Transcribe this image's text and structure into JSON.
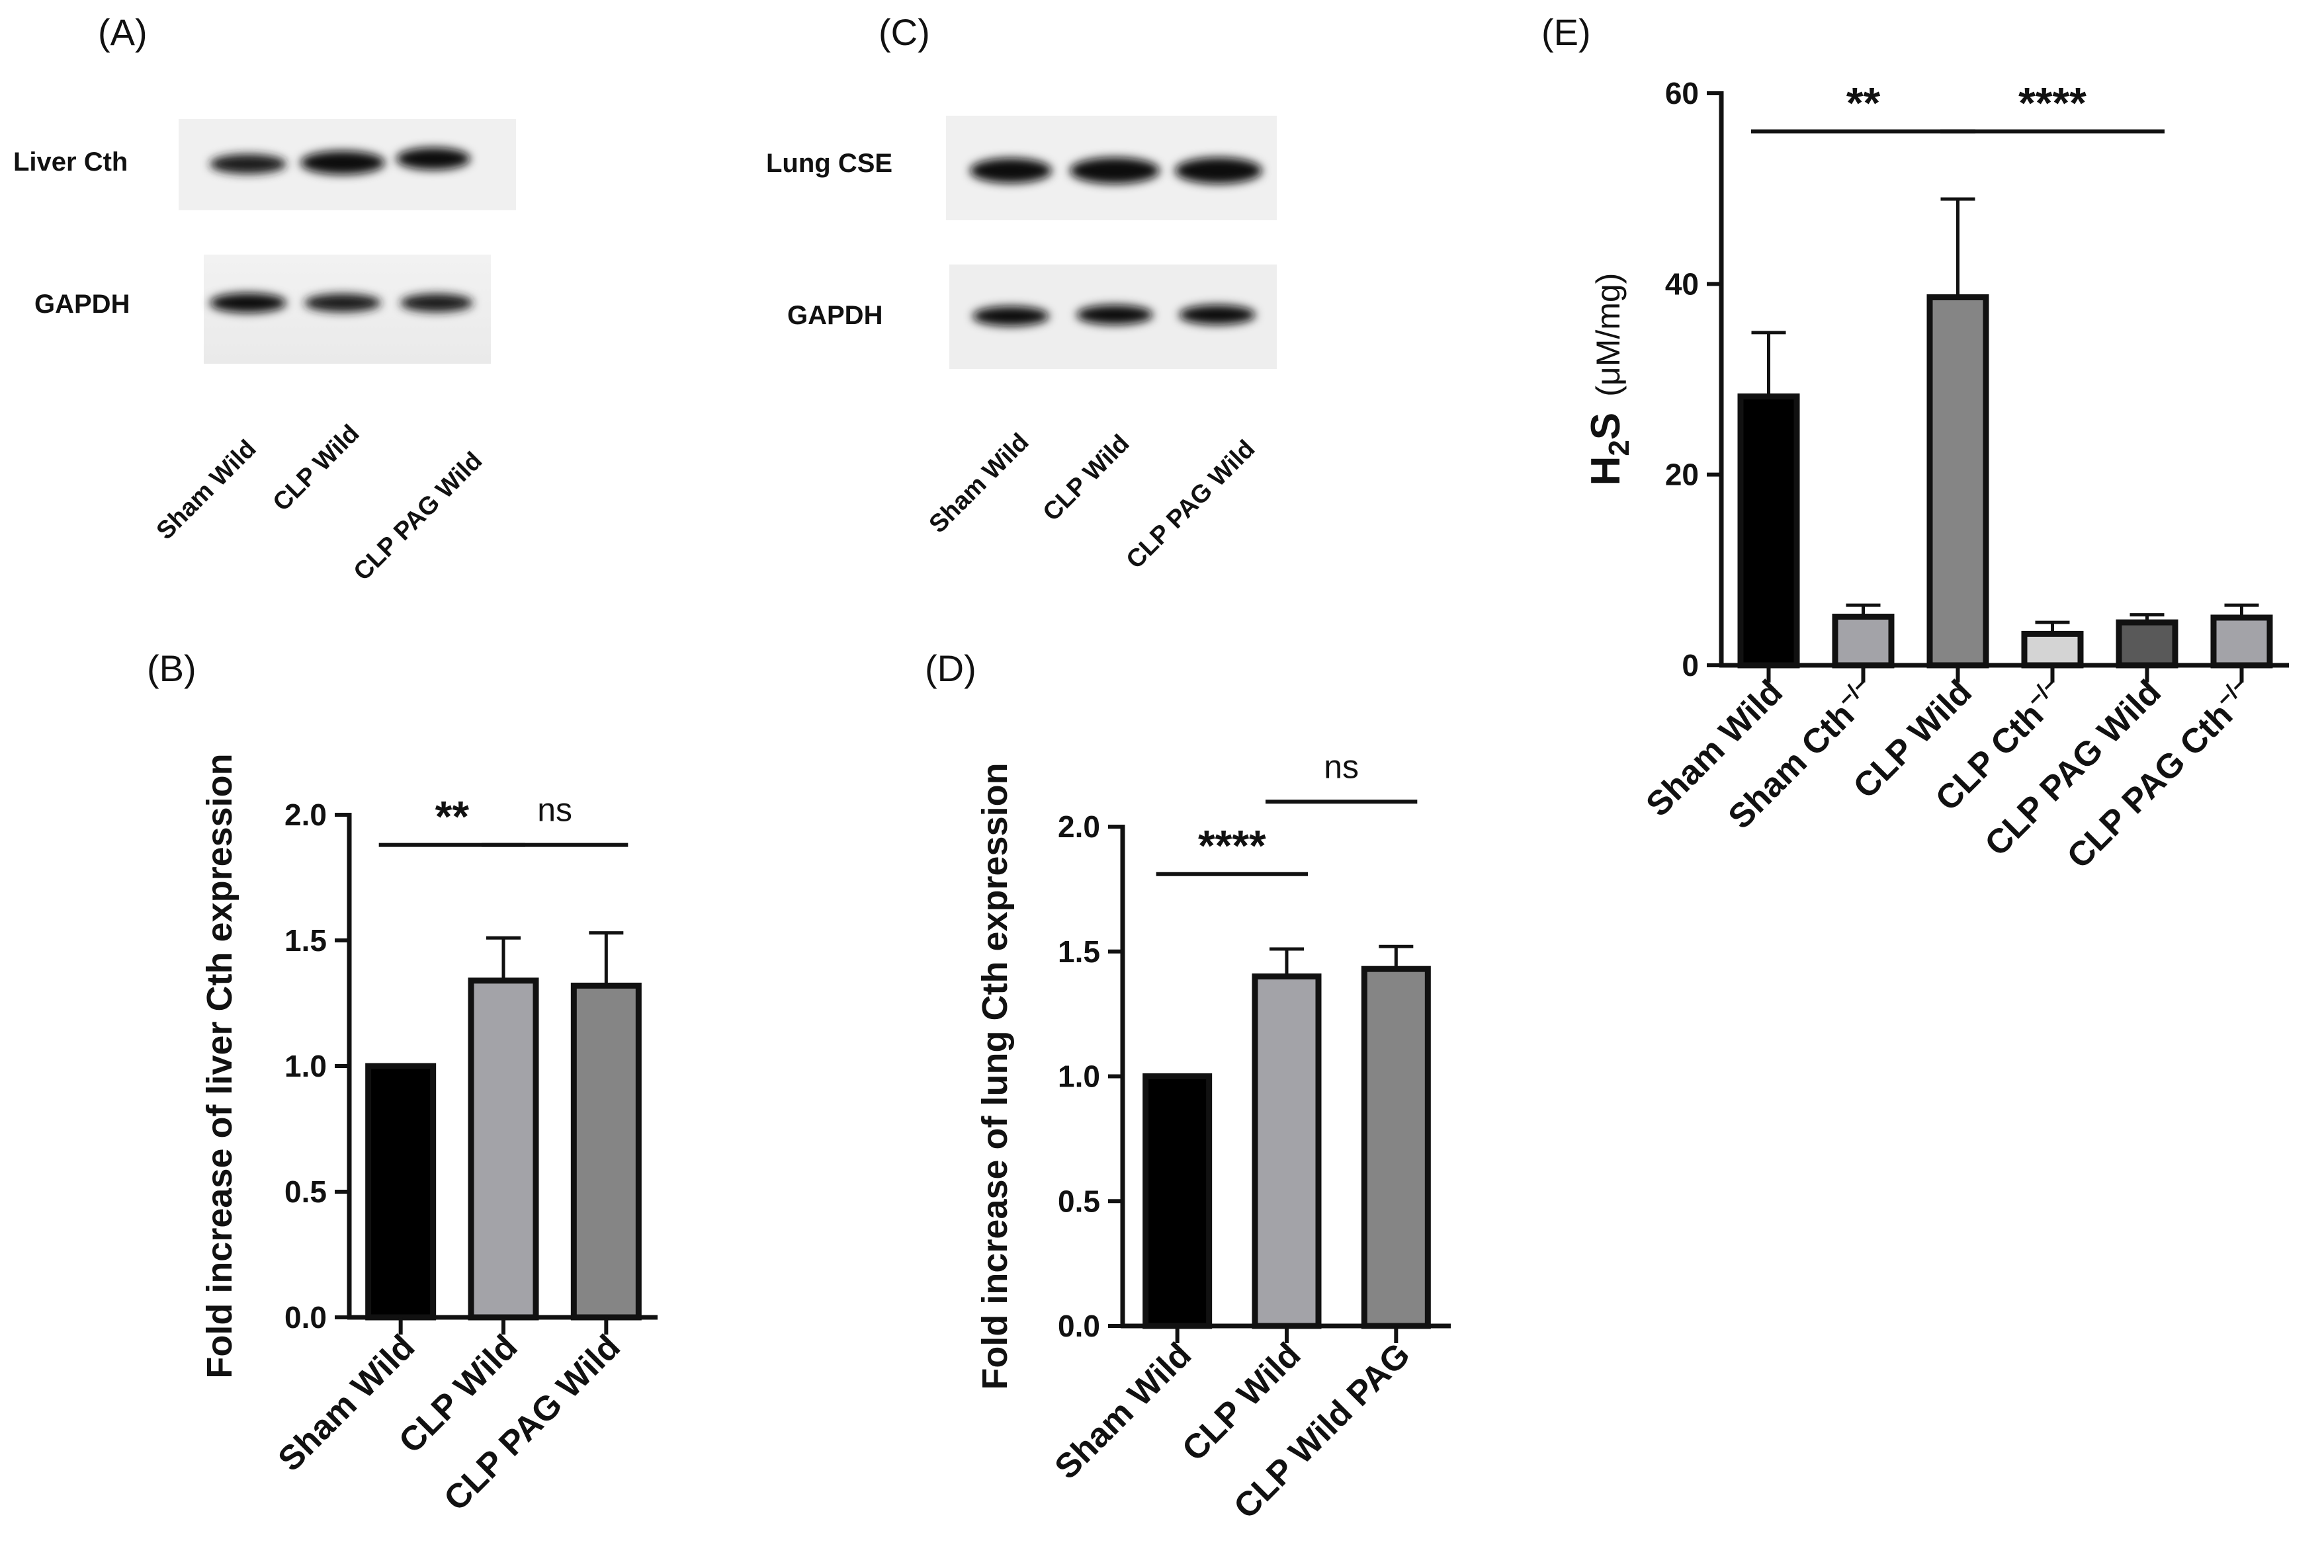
{
  "panels": {
    "A": {
      "label": "(A)",
      "rows": [
        {
          "label": "Liver Cth"
        },
        {
          "label": "GAPDH"
        }
      ],
      "lanes": [
        "Sham Wild",
        "CLP Wild",
        "CLP PAG Wild"
      ]
    },
    "C": {
      "label": "(C)",
      "rows": [
        {
          "label": "Lung CSE"
        },
        {
          "label": "GAPDH"
        }
      ],
      "lanes": [
        "Sham Wild",
        "CLP Wild",
        "CLP PAG Wild"
      ]
    }
  },
  "colors": {
    "black": "#000000",
    "light_gray": "#a3a3a8",
    "mid_gray": "#858585",
    "very_light_gray": "#d4d4d4",
    "dark_gray": "#595959"
  },
  "chart_data": [
    {
      "id": "B",
      "panel_label": "(B)",
      "type": "bar",
      "categories": [
        "Sham Wild",
        "CLP Wild",
        "CLP PAG Wild"
      ],
      "values": [
        1.0,
        1.34,
        1.32
      ],
      "errors": [
        0.0,
        0.17,
        0.21
      ],
      "bar_colors": [
        "#000000",
        "#a3a3a8",
        "#858585"
      ],
      "ylabel": "Fold increase of liver Cth expression",
      "ylim": [
        0,
        2.0
      ],
      "yticks": [
        "0.0",
        "0.5",
        "1.0",
        "1.5",
        "2.0"
      ],
      "significance": [
        {
          "from": 0,
          "to": 1,
          "label": "**",
          "y": 1.88
        },
        {
          "from": 1,
          "to": 2,
          "label": "ns",
          "y": 1.88
        }
      ]
    },
    {
      "id": "D",
      "panel_label": "(D)",
      "type": "bar",
      "categories": [
        "Sham Wild",
        "CLP Wild",
        "CLP Wild PAG"
      ],
      "values": [
        1.0,
        1.4,
        1.43
      ],
      "errors": [
        0.005,
        0.11,
        0.09
      ],
      "bar_colors": [
        "#000000",
        "#a3a3a8",
        "#858585"
      ],
      "ylabel": "Fold increase of lung Cth expression",
      "ylim": [
        0,
        2.0
      ],
      "yticks": [
        "0.0",
        "0.5",
        "1.0",
        "1.5",
        "2.0"
      ],
      "significance": [
        {
          "from": 0,
          "to": 1,
          "label": "****",
          "y": 1.81
        },
        {
          "from": 1,
          "to": 2,
          "label": "ns",
          "y": 2.1
        }
      ]
    },
    {
      "id": "E",
      "panel_label": "(E)",
      "type": "bar",
      "categories": [
        "Sham Wild",
        "Sham Cth",
        "CLP Wild",
        "CLP Cth",
        "CLP PAG Wild",
        "CLP PAG Cth"
      ],
      "category_superscripts": [
        "",
        "−/−",
        "",
        "−/−",
        "",
        "−/−"
      ],
      "values": [
        28.2,
        5.1,
        38.6,
        3.3,
        4.5,
        5.0
      ],
      "errors": [
        6.7,
        1.2,
        10.3,
        1.2,
        0.8,
        1.3
      ],
      "bar_colors": [
        "#000000",
        "#a3a3a8",
        "#858585",
        "#d4d4d4",
        "#595959",
        "#a3a3a8"
      ],
      "ylabel_main": "H",
      "ylabel_sub": "2",
      "ylabel_rest": "S",
      "ylabel_unit": "(μM/mg)",
      "ylim": [
        0,
        60
      ],
      "yticks": [
        "0",
        "20",
        "40",
        "60"
      ],
      "significance": [
        {
          "from": 0,
          "to": 2,
          "label": "**",
          "y": 56
        },
        {
          "from": 2,
          "to": 4,
          "label": "****",
          "y": 56
        }
      ]
    }
  ]
}
